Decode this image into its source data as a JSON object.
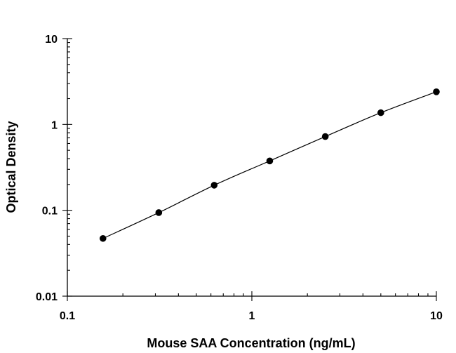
{
  "chart_data": {
    "type": "scatter",
    "title": "",
    "xlabel": "Mouse SAA Concentration (ng/mL)",
    "ylabel": "Optical Density",
    "xscale": "log",
    "yscale": "log",
    "xlim": [
      0.1,
      10
    ],
    "ylim": [
      0.01,
      10
    ],
    "x_ticks": [
      "0.1",
      "1",
      "10"
    ],
    "y_ticks": [
      "0.01",
      "0.1",
      "1",
      "10"
    ],
    "grid": false,
    "legend": "none",
    "series": [
      {
        "x": [
          0.156,
          0.313,
          0.625,
          1.25,
          2.5,
          5,
          10
        ],
        "y": [
          0.047,
          0.094,
          0.196,
          0.376,
          0.723,
          1.37,
          2.4
        ],
        "marker": "filled-circle",
        "fit_line": true
      }
    ]
  }
}
